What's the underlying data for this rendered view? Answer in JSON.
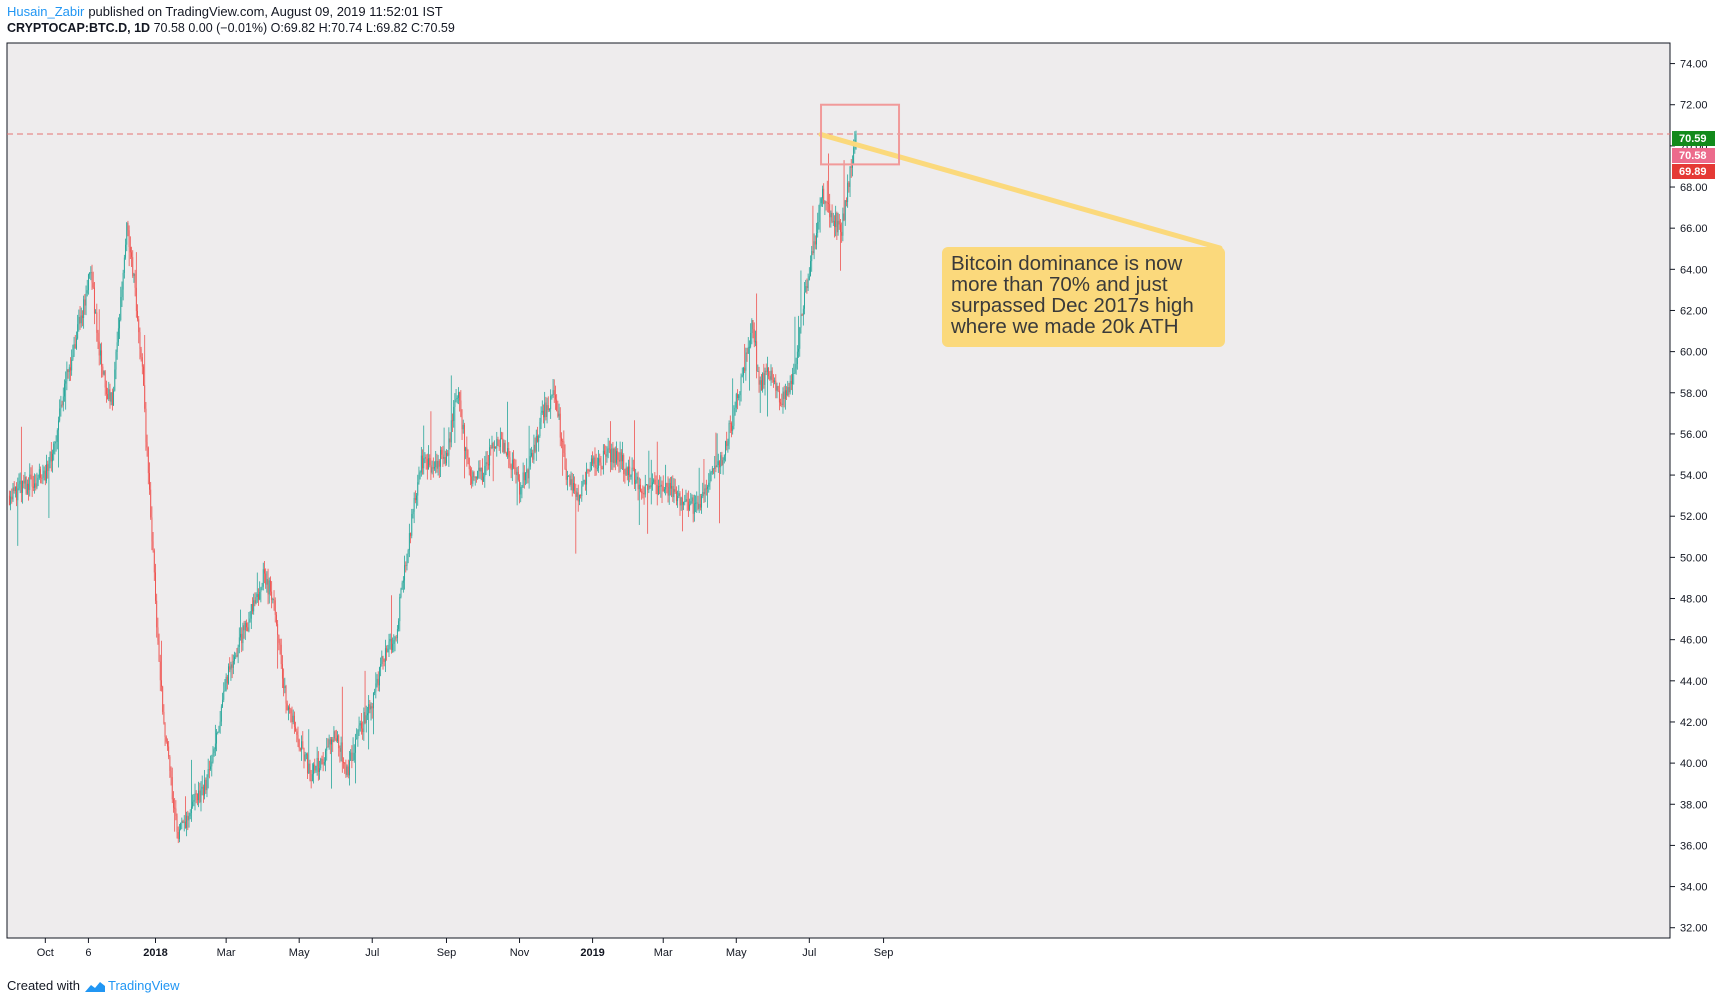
{
  "header": {
    "author": "Husain_Zabir",
    "published": "published on TradingView.com, August 09, 2019 11:52:01 IST",
    "symbol": "CRYPTOCAP:BTC.D, 1D",
    "quote": "70.58 0.00 (−0.01%) O:69.82 H:70.74 L:69.82 C:70.59"
  },
  "annotation": {
    "lines": [
      "Bitcoin dominance is now",
      "more than 70% and just",
      "surpassed Dec 2017s high",
      "where we made 20k ATH"
    ]
  },
  "footer": {
    "created_with": "Created with",
    "brand": "TradingView"
  },
  "colors": {
    "up": "#26a69a",
    "down": "#ef5350",
    "background": "#eeeced",
    "price_line": "#e57373",
    "annotation": "#fbd97c",
    "badge_high": "#128a1b",
    "badge_last": "#ec6b8c",
    "badge_low": "#e53935"
  },
  "chart_data": {
    "type": "candlestick",
    "title": "",
    "ylim": [
      31.5,
      75
    ],
    "x_tick_labels": [
      "Oct",
      "6",
      "2018",
      "Mar",
      "May",
      "Jul",
      "Sep",
      "Nov",
      "2019",
      "Mar",
      "May",
      "Jul",
      "Sep"
    ],
    "x_tick_dates": [
      "2017-10-01",
      "2017-11-06",
      "2018-01-01",
      "2018-03-01",
      "2018-05-01",
      "2018-07-01",
      "2018-09-01",
      "2018-11-01",
      "2019-01-01",
      "2019-03-01",
      "2019-05-01",
      "2019-07-01",
      "2019-09-01"
    ],
    "y_tick_labels": [
      "74.00",
      "72.00",
      "70.00",
      "68.00",
      "66.00",
      "64.00",
      "62.00",
      "60.00",
      "58.00",
      "56.00",
      "54.00",
      "52.00",
      "50.00",
      "48.00",
      "46.00",
      "44.00",
      "42.00",
      "40.00",
      "38.00",
      "36.00",
      "34.00",
      "32.00"
    ],
    "last_price_line": 70.58,
    "price_badges": [
      {
        "label": "70.59",
        "value": 70.59,
        "color": "#128a1b"
      },
      {
        "label": "70.58",
        "value": 70.58,
        "color": "#ec6b8c"
      },
      {
        "label": "69.89",
        "value": 69.89,
        "color": "#e53935"
      }
    ],
    "close_series": {
      "dates": [
        "2017-09-01",
        "2017-09-15",
        "2017-10-01",
        "2017-10-10",
        "2017-10-20",
        "2017-11-01",
        "2017-11-08",
        "2017-11-15",
        "2017-11-21",
        "2017-11-26",
        "2017-12-01",
        "2017-12-08",
        "2017-12-13",
        "2017-12-20",
        "2017-12-28",
        "2018-01-04",
        "2018-01-08",
        "2018-01-12",
        "2018-01-20",
        "2018-02-01",
        "2018-02-10",
        "2018-02-20",
        "2018-03-01",
        "2018-03-10",
        "2018-03-20",
        "2018-04-01",
        "2018-04-10",
        "2018-04-20",
        "2018-05-01",
        "2018-05-10",
        "2018-05-20",
        "2018-06-01",
        "2018-06-10",
        "2018-06-20",
        "2018-07-01",
        "2018-07-10",
        "2018-07-20",
        "2018-08-01",
        "2018-08-10",
        "2018-08-20",
        "2018-09-01",
        "2018-09-10",
        "2018-09-20",
        "2018-10-01",
        "2018-10-10",
        "2018-10-20",
        "2018-11-01",
        "2018-11-10",
        "2018-11-20",
        "2018-12-01",
        "2018-12-10",
        "2018-12-20",
        "2019-01-01",
        "2019-01-20",
        "2019-02-10",
        "2019-03-01",
        "2019-03-20",
        "2019-04-01",
        "2019-04-10",
        "2019-04-20",
        "2019-05-01",
        "2019-05-10",
        "2019-05-15",
        "2019-05-20",
        "2019-05-25",
        "2019-06-01",
        "2019-06-10",
        "2019-06-20",
        "2019-06-27",
        "2019-07-05",
        "2019-07-12",
        "2019-07-20",
        "2019-07-28",
        "2019-08-01",
        "2019-08-05",
        "2019-08-09"
      ],
      "values": [
        53.0,
        53.5,
        54.0,
        56.0,
        59.0,
        62.0,
        64.0,
        60.0,
        58.0,
        57.5,
        61.0,
        66.0,
        64.0,
        60.0,
        52.0,
        45.0,
        42.0,
        40.0,
        36.5,
        38.0,
        38.5,
        41.0,
        44.0,
        45.5,
        47.0,
        49.0,
        48.0,
        43.0,
        41.0,
        39.5,
        40.0,
        41.5,
        39.5,
        41.5,
        43.0,
        45.0,
        46.0,
        51.0,
        54.5,
        54.5,
        55.0,
        58.0,
        54.0,
        54.0,
        55.5,
        55.5,
        53.5,
        54.5,
        57.0,
        58.0,
        54.0,
        53.0,
        54.5,
        55.0,
        53.5,
        53.5,
        52.5,
        52.5,
        54.0,
        55.0,
        57.5,
        60.0,
        61.5,
        58.0,
        59.0,
        58.5,
        57.5,
        59.5,
        63.0,
        65.0,
        67.5,
        66.5,
        66.0,
        67.5,
        69.0,
        70.58
      ]
    }
  }
}
